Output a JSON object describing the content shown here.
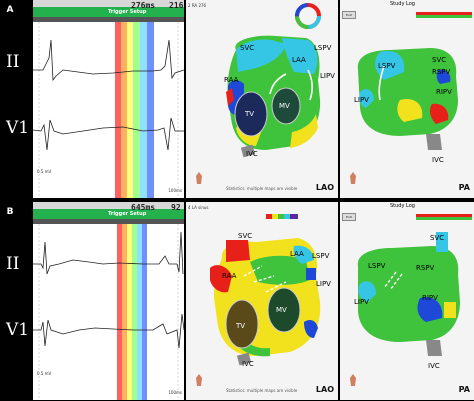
{
  "panelA": {
    "letter": "A",
    "cycle_ms": "276ms",
    "cycle_count": "216",
    "trigger_label": "Trigger Setup",
    "lead_labels": [
      "II",
      "V1"
    ],
    "scale_label": "0.5 mV",
    "speed_label": "100ms",
    "map_title": "2 RA 276",
    "study_log": "Study Log",
    "exit_label": "Exit",
    "lao": {
      "view": "LAO",
      "status": "Statistics: multiple maps are visible",
      "labels": {
        "svc": "SVC",
        "raa": "RAA",
        "laa": "LAA",
        "lspv": "LSPV",
        "lipv": "LIPV",
        "tv": "TV",
        "mv": "MV",
        "ivc": "IVC"
      }
    },
    "pa": {
      "view": "PA",
      "labels": {
        "svc": "SVC",
        "lspv": "LSPV",
        "rspv": "RSPV",
        "lipv": "LIPV",
        "ripv": "RIPV",
        "ivc": "IVC"
      }
    }
  },
  "panelB": {
    "letter": "B",
    "cycle_ms": "645ms",
    "cycle_count": "92",
    "trigger_label": "Trigger Setup",
    "lead_labels": [
      "II",
      "V1"
    ],
    "scale_label": "0.5 mV",
    "speed_label": "100ms",
    "map_title": "4 LA sinus",
    "study_log": "Study Log",
    "exit_label": "Exit",
    "lao": {
      "view": "LAO",
      "status": "Statistics: multiple maps are visible",
      "labels": {
        "svc": "SVC",
        "raa": "RAA",
        "laa": "LAA",
        "lspv": "LSPV",
        "lipv": "LIPV",
        "tv": "TV",
        "mv": "MV",
        "ivc": "IVC"
      }
    },
    "pa": {
      "view": "PA",
      "labels": {
        "svc": "SVC",
        "lspv": "LSPV",
        "rspv": "RSPV",
        "lipv": "LIPV",
        "ripv": "RIPV",
        "ivc": "IVC"
      }
    }
  },
  "colors": {
    "window_stripes": [
      "#ff6060",
      "#ffb060",
      "#ffff80",
      "#a0ff90",
      "#90e0ff",
      "#7090ff"
    ],
    "map_red": "#e8201a",
    "map_yellow": "#f2e21e",
    "map_green": "#3fc23c",
    "map_cyan": "#35c6e6",
    "map_blue": "#1d48d8",
    "map_purple": "#5a2a9c"
  }
}
